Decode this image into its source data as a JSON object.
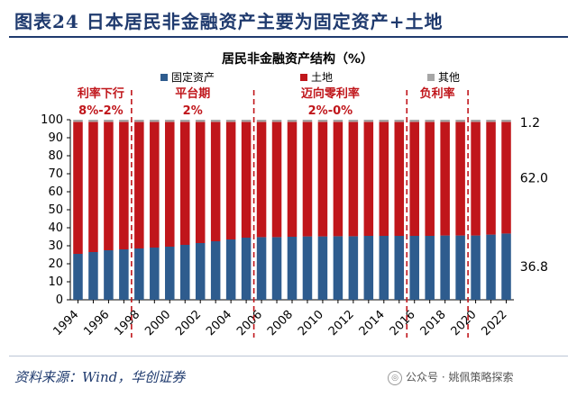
{
  "figure_title": "图表24 日本居民非金融资产主要为固定资产+土地",
  "source": "资料来源：Wind，华创证券",
  "watermark": "公众号 · 姚佩策略探索",
  "colors": {
    "fixed_assets": "#2e5c8e",
    "land": "#c0161b",
    "other": "#a6a6a6",
    "annotation": "#c0161b",
    "title": "#1f3a6e"
  },
  "chart_data": {
    "type": "bar",
    "stacked": true,
    "title": "居民非金融资产结构（%）",
    "xlabel": "",
    "ylabel": "",
    "ylim": [
      0,
      100
    ],
    "yticks": [
      0,
      10,
      20,
      30,
      40,
      50,
      60,
      70,
      80,
      90,
      100
    ],
    "categories": [
      "1994",
      "1995",
      "1996",
      "1997",
      "1998",
      "1999",
      "2000",
      "2001",
      "2002",
      "2003",
      "2004",
      "2005",
      "2006",
      "2007",
      "2008",
      "2009",
      "2010",
      "2011",
      "2012",
      "2013",
      "2014",
      "2015",
      "2016",
      "2017",
      "2018",
      "2019",
      "2020",
      "2021",
      "2022"
    ],
    "tick_labels": [
      "1994",
      "1996",
      "1998",
      "2000",
      "2002",
      "2004",
      "2006",
      "2008",
      "2010",
      "2012",
      "2014",
      "2016",
      "2018",
      "2020",
      "2022"
    ],
    "legend_position": "top",
    "series": [
      {
        "name": "固定资产",
        "values": [
          25.5,
          26.5,
          27.5,
          28,
          28.5,
          29,
          29.5,
          30.5,
          31.5,
          32.5,
          33.5,
          34.5,
          34.8,
          34.8,
          35,
          35.2,
          35.2,
          35.3,
          35.3,
          35.5,
          35.5,
          35.5,
          35.5,
          35.5,
          35.7,
          35.7,
          35.7,
          36.2,
          36.8
        ]
      },
      {
        "name": "土地",
        "values": [
          73.3,
          72.3,
          71.3,
          70.8,
          70.3,
          69.8,
          69.3,
          68.3,
          67.3,
          66.3,
          65.3,
          64.3,
          64.0,
          64.0,
          63.8,
          63.6,
          63.6,
          63.5,
          63.5,
          63.3,
          63.3,
          63.3,
          63.3,
          63.3,
          63.1,
          63.1,
          63.1,
          62.6,
          62.0
        ]
      },
      {
        "name": "其他",
        "values": [
          1.2,
          1.2,
          1.2,
          1.2,
          1.2,
          1.2,
          1.2,
          1.2,
          1.2,
          1.2,
          1.2,
          1.2,
          1.2,
          1.2,
          1.2,
          1.2,
          1.2,
          1.2,
          1.2,
          1.2,
          1.2,
          1.2,
          1.2,
          1.2,
          1.2,
          1.2,
          1.2,
          1.2,
          1.2
        ]
      }
    ],
    "data_labels": [
      {
        "series": "其他",
        "category": "2022",
        "text": "1.2"
      },
      {
        "series": "土地",
        "category": "2022",
        "text": "62.0"
      },
      {
        "series": "固定资产",
        "category": "2022",
        "text": "36.8"
      }
    ],
    "dividers": [
      {
        "after": "1997",
        "label_line1": "利率下行",
        "label_line2": "8%-2%",
        "label_at": "1995"
      },
      {
        "after": "2005",
        "label_line1": "平台期",
        "label_line2": "2%",
        "label_at": "2001"
      },
      {
        "after": "2015",
        "label_line1": "迈向零利率",
        "label_line2": "2%-0%",
        "label_at": "2010"
      },
      {
        "after": "2019",
        "label_line1": "负利率",
        "label_line2": "",
        "label_at": "2017"
      }
    ]
  }
}
